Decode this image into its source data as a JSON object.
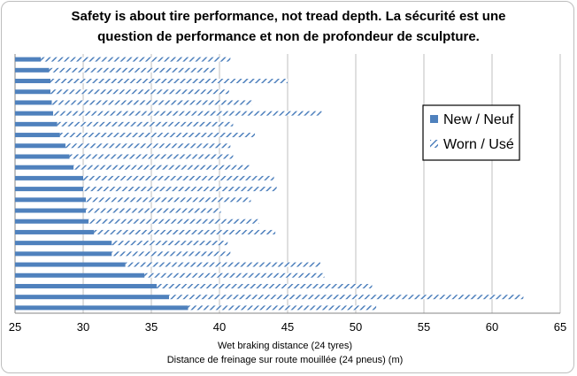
{
  "chart_data": {
    "type": "bar",
    "orientation": "horizontal",
    "title_lines": [
      "Safety is about tire performance, not tread depth. La sécurité est une",
      "question de performance et non de profondeur de sculpture."
    ],
    "xlabel_lines": [
      "Wet braking distance (24 tyres)",
      "Distance de freinage sur route mouillée (24 pneus) (m)"
    ],
    "xlim": [
      25,
      65
    ],
    "xticks": [
      25,
      30,
      35,
      40,
      45,
      50,
      55,
      60,
      65
    ],
    "grid": true,
    "legend_position": "right",
    "stacked": false,
    "overlapping": true,
    "series": [
      {
        "name": "New / Neuf",
        "pattern": "solid",
        "color": "#4f81bd",
        "values": [
          26.9,
          27.5,
          27.6,
          27.6,
          27.7,
          27.8,
          28.1,
          28.3,
          28.7,
          29.0,
          29.3,
          30.0,
          30.0,
          30.2,
          30.2,
          30.4,
          30.8,
          32.1,
          32.1,
          33.1,
          34.5,
          35.4,
          36.3,
          37.7
        ]
      },
      {
        "name": "Worn / Usé",
        "pattern": "hatched",
        "color": "#4f81bd",
        "values": [
          40.8,
          39.7,
          45.0,
          40.7,
          42.4,
          47.5,
          41.0,
          42.6,
          40.8,
          41.0,
          42.2,
          44.0,
          44.2,
          42.3,
          40.1,
          42.9,
          44.1,
          40.6,
          40.8,
          47.4,
          47.7,
          51.2,
          62.3,
          51.5
        ]
      }
    ]
  }
}
